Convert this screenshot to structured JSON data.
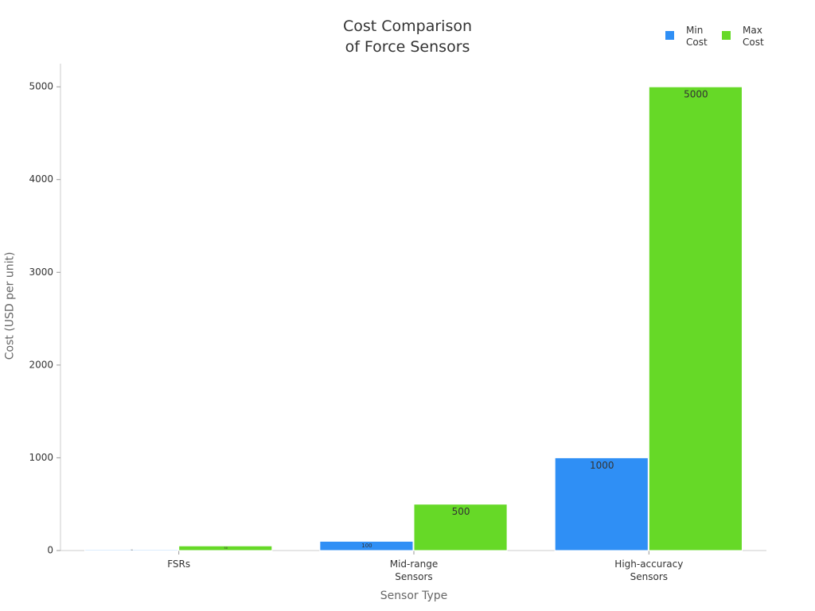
{
  "chart_data": {
    "type": "bar",
    "title": "Cost Comparison\nof Force Sensors",
    "x_label": "Sensor Type",
    "y_label": "Cost (USD per unit)",
    "categories": [
      "FSRs",
      "Mid-range\nSensors",
      "High-accuracy\nSensors"
    ],
    "series": [
      {
        "name": "Min\nCost",
        "color": "#2f8ff5",
        "values": [
          10,
          100,
          1000
        ]
      },
      {
        "name": "Max\nCost",
        "color": "#66d927",
        "values": [
          50,
          500,
          5000
        ]
      }
    ],
    "ylim": [
      0,
      5250
    ],
    "yticks": [
      0,
      1000,
      2000,
      3000,
      4000,
      5000
    ],
    "legend": "top-right"
  }
}
